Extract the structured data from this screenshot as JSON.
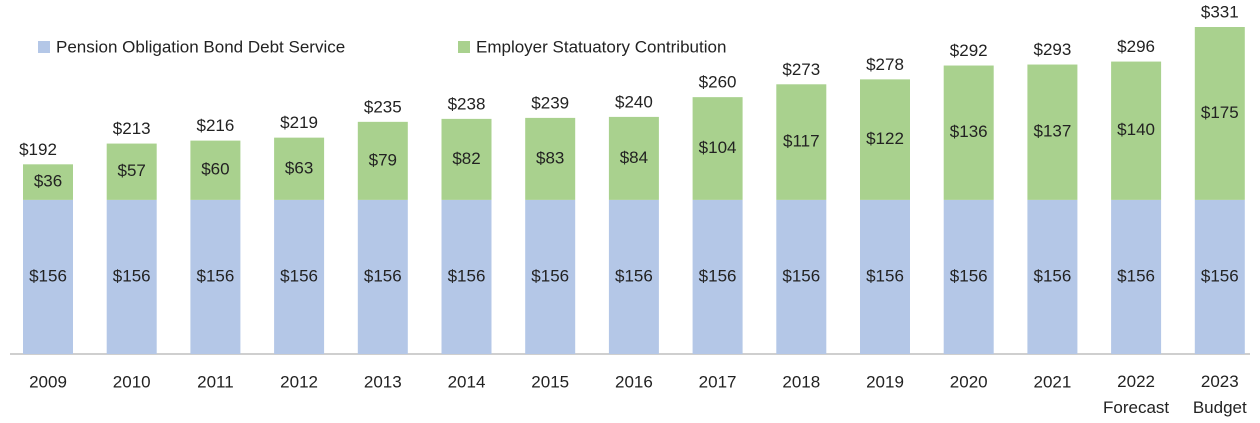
{
  "chart_data": {
    "type": "stacked_bar",
    "categories": [
      "2009",
      "2010",
      "2011",
      "2012",
      "2013",
      "2014",
      "2015",
      "2016",
      "2017",
      "2018",
      "2019",
      "2020",
      "2021",
      "2022 Forecast",
      "2023 Budget"
    ],
    "series": [
      {
        "name": "Pension Obligation Bond Debt Service",
        "color": "#b4c7e7",
        "values": [
          156,
          156,
          156,
          156,
          156,
          156,
          156,
          156,
          156,
          156,
          156,
          156,
          156,
          156,
          156
        ],
        "value_labels": [
          "$156",
          "$156",
          "$156",
          "$156",
          "$156",
          "$156",
          "$156",
          "$156",
          "$156",
          "$156",
          "$156",
          "$156",
          "$156",
          "$156",
          "$156"
        ]
      },
      {
        "name": "Employer Statuatory Contribution",
        "color": "#a9d18e",
        "values": [
          36,
          57,
          60,
          63,
          79,
          82,
          83,
          84,
          104,
          117,
          122,
          136,
          137,
          140,
          175
        ],
        "value_labels": [
          "$36",
          "$57",
          "$60",
          "$63",
          "$79",
          "$82",
          "$83",
          "$84",
          "$104",
          "$117",
          "$122",
          "$136",
          "$137",
          "$140",
          "$175"
        ]
      }
    ],
    "totals": [
      192,
      213,
      216,
      219,
      235,
      238,
      239,
      240,
      260,
      273,
      278,
      292,
      293,
      296,
      331
    ],
    "total_labels": [
      "$192",
      "$213",
      "$216",
      "$219",
      "$235",
      "$238",
      "$239",
      "$240",
      "$260",
      "$273",
      "$278",
      "$292",
      "$293",
      "$296",
      "$331"
    ],
    "legend": "top-left"
  }
}
